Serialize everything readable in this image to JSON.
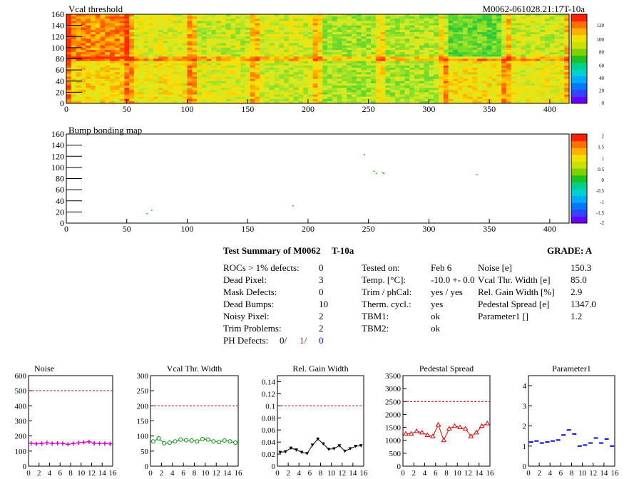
{
  "map1": {
    "title": "Vcal threshold",
    "module_label": "M0062-061028.21:17T-10a",
    "x_ticks": [
      "0",
      "50",
      "100",
      "150",
      "200",
      "250",
      "300",
      "350",
      "400"
    ],
    "y_ticks": [
      "0",
      "20",
      "40",
      "60",
      "80",
      "100",
      "120",
      "140",
      "160"
    ],
    "palette_ticks": [
      "120",
      "100",
      "80",
      "60",
      "40",
      "20",
      "0"
    ]
  },
  "map2": {
    "title": "Bump bonding map",
    "x_ticks": [
      "0",
      "50",
      "100",
      "150",
      "200",
      "250",
      "300",
      "350",
      "400"
    ],
    "y_ticks": [
      "0",
      "20",
      "40",
      "60",
      "80",
      "100",
      "120",
      "140",
      "160"
    ],
    "palette_ticks": [
      "2",
      "1.5",
      "1",
      "0.5",
      "0",
      "-0.5",
      "-1",
      "-1.5",
      "-2"
    ]
  },
  "summary": {
    "title": "Test Summary of M0062",
    "test": "T-10a",
    "grade": "GRADE:  A",
    "left": [
      {
        "label": "ROCs > 1% defects:",
        "value": "0"
      },
      {
        "label": "Dead Pixel:",
        "value": "3"
      },
      {
        "label": "Mask Defects:",
        "value": "0"
      },
      {
        "label": "Dead Bumps:",
        "value": "10"
      },
      {
        "label": "Noisy Pixel:",
        "value": "2"
      },
      {
        "label": "Trim Problems:",
        "value": "2"
      }
    ],
    "ph_label": "PH Defects:",
    "ph_values": [
      "0/",
      "1/",
      "0"
    ],
    "middle": [
      {
        "label": "Tested on:",
        "value": "Feb 6"
      },
      {
        "label": "Temp. [°C]:",
        "value": "-10.0 +- 0.0"
      },
      {
        "label": "Trim / phCal:",
        "value": "yes / yes"
      },
      {
        "label": "Therm. cycl.:",
        "value": "yes"
      },
      {
        "label": "TBM1:",
        "value": "ok"
      },
      {
        "label": "TBM2:",
        "value": "ok"
      }
    ],
    "right": [
      {
        "label": "Noise [e]",
        "value": "150.3"
      },
      {
        "label": "Vcal Thr. Width [e]",
        "value": "85.0"
      },
      {
        "label": "Rel. Gain Width [%]",
        "value": "2.9"
      },
      {
        "label": "Pedestal Spread [e]",
        "value": "1347.0"
      },
      {
        "label": "Parameter1 []",
        "value": "1.2"
      }
    ]
  },
  "chart_data": [
    {
      "type": "line",
      "title": "Noise",
      "x_ticks": [
        "0",
        "2",
        "4",
        "6",
        "8",
        "10",
        "12",
        "14",
        "16"
      ],
      "ylim": [
        0,
        600
      ],
      "y_ticks": [
        "0",
        "100",
        "200",
        "300",
        "400",
        "500",
        "600"
      ],
      "threshold": 500,
      "color": "#d000d0",
      "marker": "plus",
      "x": [
        0,
        1,
        2,
        3,
        4,
        5,
        6,
        7,
        8,
        9,
        10,
        11,
        12,
        13,
        14,
        15
      ],
      "values": [
        152,
        148,
        150,
        155,
        150,
        152,
        150,
        145,
        150,
        155,
        158,
        162,
        152,
        150,
        150,
        148
      ]
    },
    {
      "type": "line",
      "title": "Vcal Thr. Width",
      "x_ticks": [
        "0",
        "2",
        "4",
        "6",
        "8",
        "10",
        "12",
        "14",
        "16"
      ],
      "ylim": [
        0,
        300
      ],
      "y_ticks": [
        "0",
        "50",
        "100",
        "150",
        "200",
        "250",
        "300"
      ],
      "threshold": 200,
      "color": "#009000",
      "marker": "circle",
      "x": [
        0,
        1,
        2,
        3,
        4,
        5,
        6,
        7,
        8,
        9,
        10,
        11,
        12,
        13,
        14,
        15
      ],
      "values": [
        82,
        92,
        76,
        78,
        82,
        88,
        86,
        85,
        82,
        90,
        88,
        82,
        80,
        85,
        82,
        78
      ]
    },
    {
      "type": "line",
      "title": "Rel. Gain Width",
      "x_ticks": [
        "0",
        "2",
        "4",
        "6",
        "8",
        "10",
        "12",
        "14",
        "16"
      ],
      "ylim": [
        0,
        0.15
      ],
      "y_ticks": [
        "0",
        "0.02",
        "0.04",
        "0.06",
        "0.08",
        "0.1",
        "0.12",
        "0.14"
      ],
      "threshold": 0.1,
      "color": "#000000",
      "marker": "triangle-down",
      "x": [
        0,
        1,
        2,
        3,
        4,
        5,
        6,
        7,
        8,
        9,
        10,
        11,
        12,
        13,
        14,
        15
      ],
      "values": [
        0.023,
        0.024,
        0.03,
        0.027,
        0.023,
        0.021,
        0.035,
        0.045,
        0.037,
        0.028,
        0.029,
        0.034,
        0.025,
        0.029,
        0.033,
        0.034
      ]
    },
    {
      "type": "line",
      "title": "Pedestal Spread",
      "x_ticks": [
        "0",
        "2",
        "4",
        "6",
        "8",
        "10",
        "12",
        "14",
        "16"
      ],
      "ylim": [
        0,
        3500
      ],
      "y_ticks": [
        "0",
        "500",
        "1000",
        "1500",
        "2000",
        "2500",
        "3000",
        "3500"
      ],
      "threshold": 2500,
      "color": "#e00000",
      "marker": "triangle-up",
      "x": [
        0,
        1,
        2,
        3,
        4,
        5,
        6,
        7,
        8,
        9,
        10,
        11,
        12,
        13,
        14,
        15
      ],
      "values": [
        1250,
        1250,
        1350,
        1300,
        1200,
        1150,
        1600,
        1000,
        1450,
        1550,
        1500,
        1450,
        1150,
        1300,
        1550,
        1650
      ]
    },
    {
      "type": "scatter",
      "title": "Parameter1",
      "x_ticks": [
        "0",
        "2",
        "4",
        "6",
        "8",
        "10",
        "12",
        "14",
        "16"
      ],
      "ylim": [
        0,
        4.5
      ],
      "y_ticks": [
        "0",
        "1",
        "2",
        "3",
        "4"
      ],
      "threshold": null,
      "color": "#0000e0",
      "marker": "hline",
      "x": [
        0,
        1,
        2,
        3,
        4,
        5,
        6,
        7,
        8,
        9,
        10,
        11,
        12,
        13,
        14,
        15
      ],
      "values": [
        1.2,
        1.25,
        1.15,
        1.2,
        1.25,
        1.3,
        1.55,
        1.8,
        1.6,
        1.0,
        1.05,
        1.15,
        1.4,
        1.15,
        1.35,
        1.0
      ]
    }
  ]
}
